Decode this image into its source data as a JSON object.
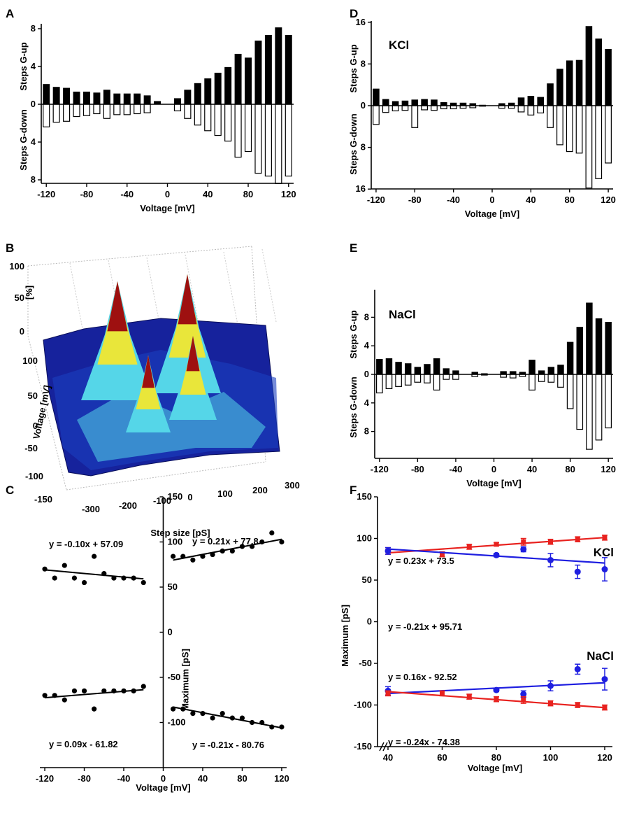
{
  "colors": {
    "red": "#e8221f",
    "blue": "#1f1fe0",
    "black": "#000000",
    "surface_blue": "#16229c",
    "surface_cyan": "#55d6e8",
    "surface_yellow": "#e9e63a",
    "surface_red": "#9e1010"
  },
  "panels": {
    "A": "A",
    "B": "B",
    "C": "C",
    "D": "D",
    "E": "E",
    "F": "F"
  },
  "chart_data": [
    {
      "id": "A",
      "type": "bar",
      "ylabel_up": "Steps G-up",
      "ylabel_down": "Steps G-down",
      "xlabel": "Voltage [mV]",
      "xlim": [
        -125,
        125
      ],
      "xticks": [
        "-120",
        "-80",
        "-40",
        "0",
        "40",
        "80",
        "120"
      ],
      "yticks": [
        "8",
        "4",
        "0",
        "4",
        "8"
      ],
      "ylim": [
        -8.5,
        8.5
      ],
      "x": [
        -120,
        -110,
        -100,
        -90,
        -80,
        -70,
        -60,
        -50,
        -40,
        -30,
        -20,
        -10,
        10,
        20,
        30,
        40,
        50,
        60,
        70,
        80,
        90,
        100,
        110,
        120
      ],
      "up": [
        2.1,
        1.8,
        1.7,
        1.3,
        1.3,
        1.2,
        1.5,
        1.1,
        1.1,
        1.1,
        0.9,
        0.3,
        0.6,
        1.5,
        2.2,
        2.7,
        3.3,
        3.9,
        5.3,
        4.9,
        6.7,
        7.3,
        8.1,
        7.3
      ],
      "down": [
        2.4,
        1.9,
        1.8,
        1.3,
        1.2,
        1.0,
        1.5,
        1.1,
        1.1,
        1.0,
        0.9,
        0.0,
        0.7,
        1.5,
        2.2,
        2.8,
        3.3,
        3.9,
        5.6,
        5.0,
        7.3,
        7.6,
        8.4,
        7.6
      ]
    },
    {
      "id": "D",
      "type": "bar",
      "title": "KCl",
      "ylabel_up": "Steps G-up",
      "ylabel_down": "Steps G-down",
      "xlabel": "Voltage [mV]",
      "xlim": [
        -125,
        125
      ],
      "xticks": [
        "-120",
        "-80",
        "-40",
        "0",
        "40",
        "80",
        "120"
      ],
      "yticks": [
        "16",
        "8",
        "0",
        "8",
        "16"
      ],
      "ylim": [
        -16,
        16
      ],
      "x": [
        -120,
        -110,
        -100,
        -90,
        -80,
        -70,
        -60,
        -50,
        -40,
        -30,
        -20,
        -10,
        10,
        20,
        30,
        40,
        50,
        60,
        70,
        80,
        90,
        100,
        110,
        120
      ],
      "up": [
        3.2,
        1.2,
        0.8,
        0.9,
        1.1,
        1.2,
        1.1,
        0.6,
        0.5,
        0.5,
        0.4,
        0.1,
        0.4,
        0.5,
        1.5,
        1.8,
        1.6,
        4.2,
        7.0,
        8.6,
        8.7,
        15.2,
        12.8,
        10.8
      ],
      "down": [
        3.6,
        1.3,
        1.0,
        0.9,
        4.2,
        0.8,
        0.9,
        0.6,
        0.6,
        0.5,
        0.4,
        0.1,
        0.5,
        0.5,
        1.2,
        1.8,
        1.4,
        4.2,
        7.5,
        8.8,
        9.1,
        15.8,
        14.0,
        11.0
      ]
    },
    {
      "id": "E",
      "type": "bar",
      "title": "NaCl",
      "ylabel_up": "Steps G-up",
      "ylabel_down": "Steps G-down",
      "xlabel": "Voltage [mV]",
      "xlim": [
        -125,
        125
      ],
      "xticks": [
        "-120",
        "-80",
        "-40",
        "0",
        "40",
        "80",
        "120"
      ],
      "yticks": [
        "8",
        "4",
        "0",
        "4",
        "8"
      ],
      "ylim": [
        -11,
        11
      ],
      "x": [
        -120,
        -110,
        -100,
        -90,
        -80,
        -70,
        -60,
        -50,
        -40,
        -30,
        -20,
        -10,
        10,
        20,
        30,
        40,
        50,
        60,
        70,
        80,
        90,
        100,
        110,
        120
      ],
      "up": [
        2.1,
        2.2,
        1.7,
        1.5,
        1.0,
        1.4,
        2.2,
        0.8,
        0.5,
        0.0,
        0.3,
        0.1,
        0.4,
        0.4,
        0.3,
        2.0,
        0.5,
        1.0,
        1.3,
        4.5,
        6.6,
        10.0,
        7.8,
        7.3
      ],
      "down": [
        2.6,
        2.0,
        1.7,
        1.5,
        1.1,
        1.2,
        2.2,
        0.7,
        0.7,
        0.0,
        0.3,
        0.1,
        0.4,
        0.5,
        0.3,
        2.2,
        1.0,
        1.1,
        1.8,
        4.8,
        7.7,
        10.5,
        9.2,
        7.5
      ]
    },
    {
      "id": "B",
      "type": "surface",
      "zticks": [
        "100",
        "50",
        "0"
      ],
      "zlabel": "[%]",
      "yticks": [
        "100",
        "50",
        "0",
        "-50",
        "-100",
        "-150"
      ],
      "ylabel": "Voltage [mV]",
      "xticks": [
        "-300",
        "-200",
        "-100",
        "0",
        "100",
        "200",
        "300"
      ],
      "xlabel": "Step size [pS]"
    },
    {
      "id": "C",
      "type": "scatter",
      "ylabel": "Maximum [pS]",
      "xlabel": "Voltage [mV]",
      "xlim": [
        -125,
        125
      ],
      "ylim": [
        -150,
        150
      ],
      "xticks": [
        "-120",
        "-80",
        "-40",
        "0",
        "40",
        "80",
        "120"
      ],
      "yticks": [
        "150",
        "100",
        "50",
        "0",
        "-50",
        "-100"
      ],
      "series": [
        {
          "x": [
            -120,
            -110,
            -100,
            -90,
            -80,
            -70,
            -60,
            -50,
            -40,
            -30,
            -20
          ],
          "y": [
            70,
            60,
            74,
            60,
            55,
            84,
            65,
            60,
            60,
            60,
            55
          ],
          "fit": [
            -0.1,
            57.09
          ],
          "equation": "y = -0.10x + 57.09"
        },
        {
          "x": [
            10,
            20,
            30,
            40,
            50,
            60,
            70,
            80,
            90,
            100,
            110,
            120
          ],
          "y": [
            84,
            84,
            80,
            84,
            86,
            90,
            90,
            95,
            95,
            100,
            110,
            100
          ],
          "fit": [
            0.21,
            77.8
          ],
          "equation": "y = 0.21x + 77.8"
        },
        {
          "x": [
            -120,
            -110,
            -100,
            -90,
            -80,
            -70,
            -60,
            -50,
            -40,
            -30,
            -20
          ],
          "y": [
            -70,
            -70,
            -75,
            -65,
            -65,
            -85,
            -65,
            -65,
            -65,
            -65,
            -60
          ],
          "fit": [
            0.09,
            -61.82
          ],
          "equation": "y = 0.09x - 61.82"
        },
        {
          "x": [
            10,
            20,
            30,
            40,
            50,
            60,
            70,
            80,
            90,
            100,
            110,
            120
          ],
          "y": [
            -85,
            -85,
            -90,
            -90,
            -95,
            -90,
            -95,
            -95,
            -100,
            -100,
            -105,
            -105
          ],
          "fit": [
            -0.21,
            -80.76
          ],
          "equation": "y = -0.21x - 80.76"
        }
      ]
    },
    {
      "id": "F",
      "type": "scatter",
      "ylabel": "Maximum [pS]",
      "xlabel": "Voltage [mV]",
      "xlim": [
        40,
        122
      ],
      "ylim": [
        -150,
        150
      ],
      "xticks": [
        "40",
        "60",
        "80",
        "100",
        "120"
      ],
      "yticks": [
        "150",
        "100",
        "50",
        "0",
        "-50",
        "-100",
        "-150"
      ],
      "labels": {
        "kcl": "KCl",
        "nacl": "NaCl"
      },
      "series": [
        {
          "name": "KCl",
          "color": "red",
          "x": [
            40,
            60,
            70,
            80,
            90,
            100,
            110,
            120
          ],
          "y": [
            85,
            81,
            90,
            93,
            96,
            96,
            99,
            101
          ],
          "err": [
            4,
            3,
            3,
            2,
            4,
            3,
            3,
            3
          ],
          "fit": [
            0.23,
            73.5
          ],
          "equation": "y = 0.23x + 73.5"
        },
        {
          "name": "NaCl",
          "color": "blue",
          "x": [
            40,
            80,
            90,
            100,
            110,
            120
          ],
          "y": [
            85,
            80,
            87,
            74,
            60,
            63
          ],
          "err": [
            4,
            2,
            3,
            8,
            8,
            14
          ],
          "fit": [
            -0.21,
            95.71
          ],
          "equation": "y = -0.21x + 95.71"
        },
        {
          "name": "NaCl",
          "color": "blue",
          "x": [
            40,
            80,
            90,
            100,
            110,
            120
          ],
          "y": [
            -83,
            -82,
            -87,
            -77,
            -57,
            -69
          ],
          "err": [
            5,
            2,
            4,
            6,
            6,
            13
          ],
          "fit": [
            0.16,
            -92.52
          ],
          "equation": "y = 0.16x - 92.52"
        },
        {
          "name": "KCl",
          "color": "red",
          "x": [
            40,
            60,
            70,
            80,
            90,
            100,
            110,
            120
          ],
          "y": [
            -86,
            -86,
            -90,
            -93,
            -94,
            -98,
            -100,
            -103
          ],
          "err": [
            3,
            3,
            3,
            3,
            4,
            3,
            3,
            3
          ],
          "fit": [
            -0.24,
            -74.38
          ],
          "equation": "y = -0.24x - 74.38"
        }
      ]
    }
  ]
}
